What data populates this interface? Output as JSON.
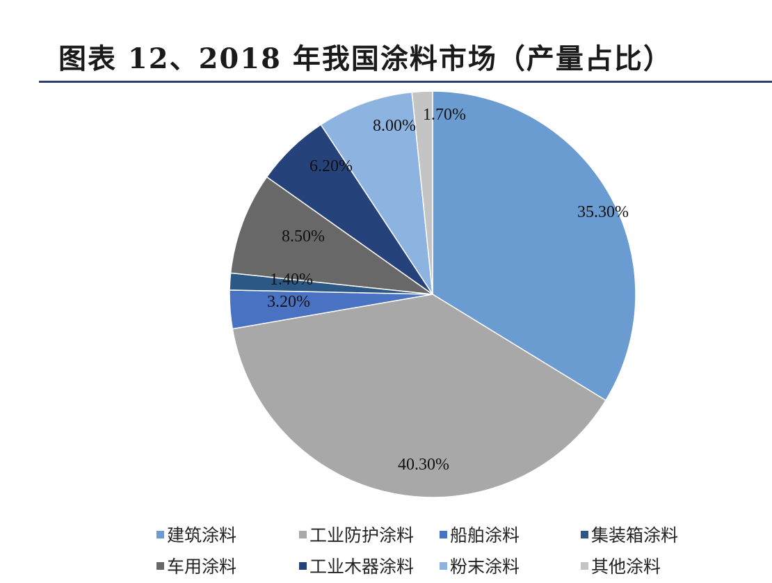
{
  "title": "图表 12、2018 年我国涂料市场（产量占比）",
  "chart_data": {
    "type": "pie",
    "title": "图表 12、2018 年我国涂料市场（产量占比）",
    "start_angle_deg": 0,
    "direction": "clockwise",
    "legend_position": "bottom",
    "slices": [
      {
        "name": "建筑涂料",
        "value": 35.3,
        "label": "35.30%",
        "color": "#6a9bd1"
      },
      {
        "name": "工业防护涂料",
        "value": 40.3,
        "label": "40.30%",
        "color": "#a8a8a8"
      },
      {
        "name": "船舶涂料",
        "value": 3.2,
        "label": "3.20%",
        "color": "#4a72c2"
      },
      {
        "name": "集装箱涂料",
        "value": 1.4,
        "label": "1.40%",
        "color": "#2c5886"
      },
      {
        "name": "车用涂料",
        "value": 8.5,
        "label": "8.50%",
        "color": "#686868"
      },
      {
        "name": "工业木器涂料",
        "value": 6.2,
        "label": "6.20%",
        "color": "#26427a"
      },
      {
        "name": "粉末涂料",
        "value": 8.0,
        "label": "8.00%",
        "color": "#8db4e0"
      },
      {
        "name": "其他涂料",
        "value": 1.7,
        "label": "1.70%",
        "color": "#c4c4c4"
      }
    ]
  }
}
